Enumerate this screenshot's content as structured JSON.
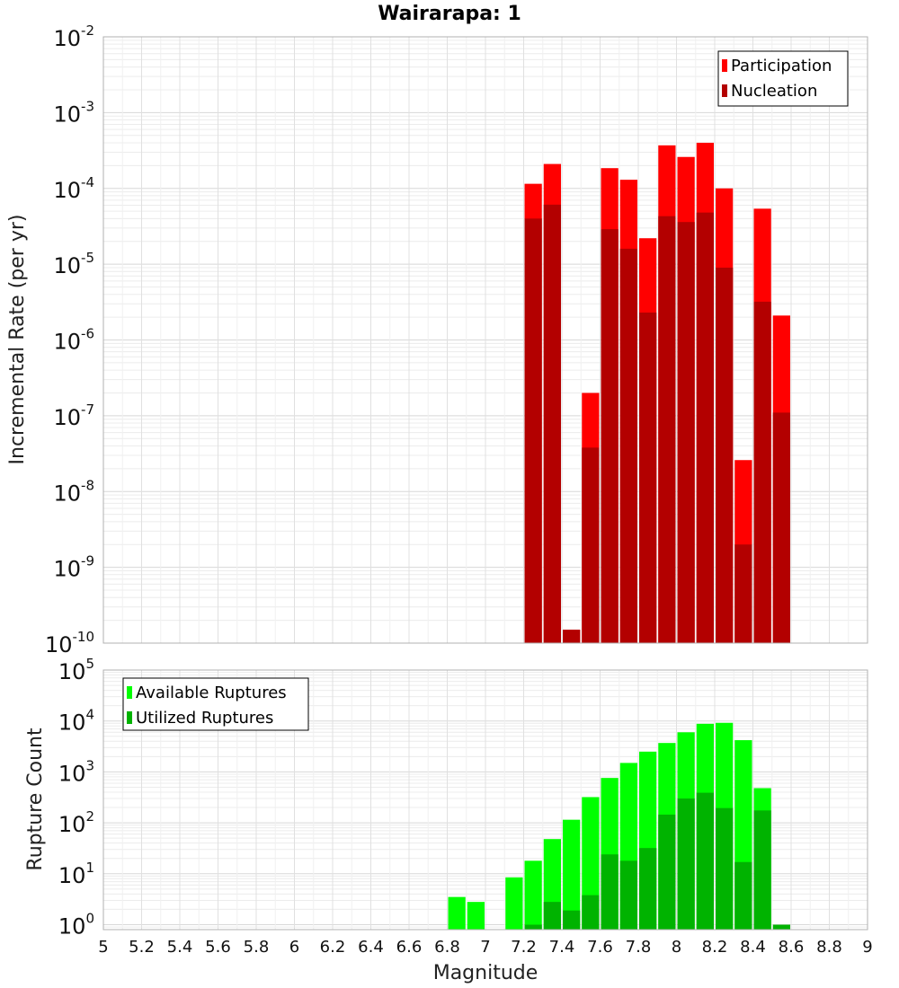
{
  "chart_data": [
    {
      "type": "bar",
      "title": "Wairarapa: 1",
      "xlabel": "Magnitude",
      "ylabel": "Incremental Rate (per yr)",
      "yscale": "log",
      "ylim": [
        1e-10,
        0.01
      ],
      "xlim": [
        5,
        9
      ],
      "bar_width": 0.1,
      "grid": true,
      "legend": "top-right",
      "x_ticks": [
        "5",
        "5.2",
        "5.4",
        "5.6",
        "5.8",
        "6",
        "6.2",
        "6.4",
        "6.6",
        "6.8",
        "7",
        "7.2",
        "7.4",
        "7.6",
        "7.8",
        "8",
        "8.2",
        "8.4",
        "8.6",
        "8.8",
        "9"
      ],
      "y_ticks": [
        {
          "base": "10",
          "exp": "-10"
        },
        {
          "base": "10",
          "exp": "-9"
        },
        {
          "base": "10",
          "exp": "-8"
        },
        {
          "base": "10",
          "exp": "-7"
        },
        {
          "base": "10",
          "exp": "-6"
        },
        {
          "base": "10",
          "exp": "-5"
        },
        {
          "base": "10",
          "exp": "-4"
        },
        {
          "base": "10",
          "exp": "-3"
        },
        {
          "base": "10",
          "exp": "-2"
        }
      ],
      "series": [
        {
          "name": "Participation",
          "color": "#ff0000",
          "x": [
            7.25,
            7.35,
            7.45,
            7.55,
            7.65,
            7.75,
            7.85,
            7.95,
            8.05,
            8.15,
            8.25,
            8.35,
            8.45,
            8.55
          ],
          "values": [
            0.000115,
            0.00021,
            1.5e-10,
            2e-07,
            0.000185,
            0.00013,
            2.2e-05,
            0.00037,
            0.00026,
            0.0004,
            0.0001,
            2.6e-08,
            5.4e-05,
            2.1e-06
          ]
        },
        {
          "name": "Nucleation",
          "color": "#b30000",
          "x": [
            7.25,
            7.35,
            7.45,
            7.55,
            7.65,
            7.75,
            7.85,
            7.95,
            8.05,
            8.15,
            8.25,
            8.35,
            8.45,
            8.55
          ],
          "values": [
            4e-05,
            6.1e-05,
            1.5e-10,
            3.8e-08,
            2.9e-05,
            1.6e-05,
            2.3e-06,
            4.3e-05,
            3.6e-05,
            4.8e-05,
            9e-06,
            2e-09,
            3.2e-06,
            1.1e-07
          ]
        }
      ]
    },
    {
      "type": "bar",
      "xlabel": "Magnitude",
      "ylabel": "Rupture Count",
      "yscale": "log",
      "ylim": [
        0.8,
        100000
      ],
      "xlim": [
        5,
        9
      ],
      "bar_width": 0.1,
      "grid": true,
      "legend": "top-left",
      "y_ticks": [
        {
          "base": "10",
          "exp": "0"
        },
        {
          "base": "10",
          "exp": "1"
        },
        {
          "base": "10",
          "exp": "2"
        },
        {
          "base": "10",
          "exp": "3"
        },
        {
          "base": "10",
          "exp": "4"
        },
        {
          "base": "10",
          "exp": "5"
        }
      ],
      "series": [
        {
          "name": "Available Ruptures",
          "color": "#00ff00",
          "x": [
            6.85,
            6.95,
            7.15,
            7.25,
            7.35,
            7.45,
            7.55,
            7.65,
            7.75,
            7.85,
            7.95,
            8.05,
            8.15,
            8.25,
            8.35,
            8.45
          ],
          "values": [
            3.5,
            2.8,
            8.5,
            18,
            48,
            115,
            320,
            760,
            1500,
            2500,
            3700,
            6000,
            8800,
            9200,
            4200,
            480
          ]
        },
        {
          "name": "Utilized Ruptures",
          "color": "#00b300",
          "x": [
            7.25,
            7.35,
            7.45,
            7.55,
            7.65,
            7.75,
            7.85,
            7.95,
            8.05,
            8.15,
            8.25,
            8.35,
            8.45,
            8.55
          ],
          "values": [
            1,
            2.8,
            1.9,
            3.8,
            24,
            18,
            32,
            145,
            300,
            390,
            195,
            17,
            175,
            1
          ]
        }
      ]
    }
  ]
}
